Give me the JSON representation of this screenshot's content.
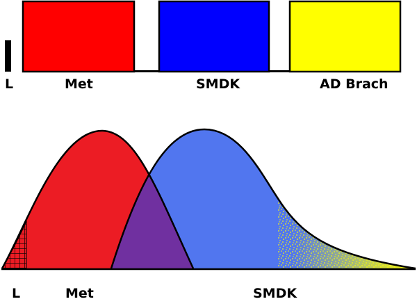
{
  "top_bars": {
    "labels": {
      "l": "L",
      "met": "Met",
      "smdk": "SMDK",
      "ad_brach": "AD Brach"
    },
    "colors": {
      "l": "#000000",
      "met": "#ff0000",
      "smdk": "#0000ff",
      "ad_brach": "#ffff00"
    }
  },
  "bottom_distribution": {
    "labels": {
      "l": "L",
      "met": "Met",
      "smdk": "SMDK"
    },
    "colors": {
      "met": "#ec1c24",
      "smdk": "#5176ef",
      "overlap": "#7030a0",
      "ad_tail": "#ffff00"
    }
  }
}
